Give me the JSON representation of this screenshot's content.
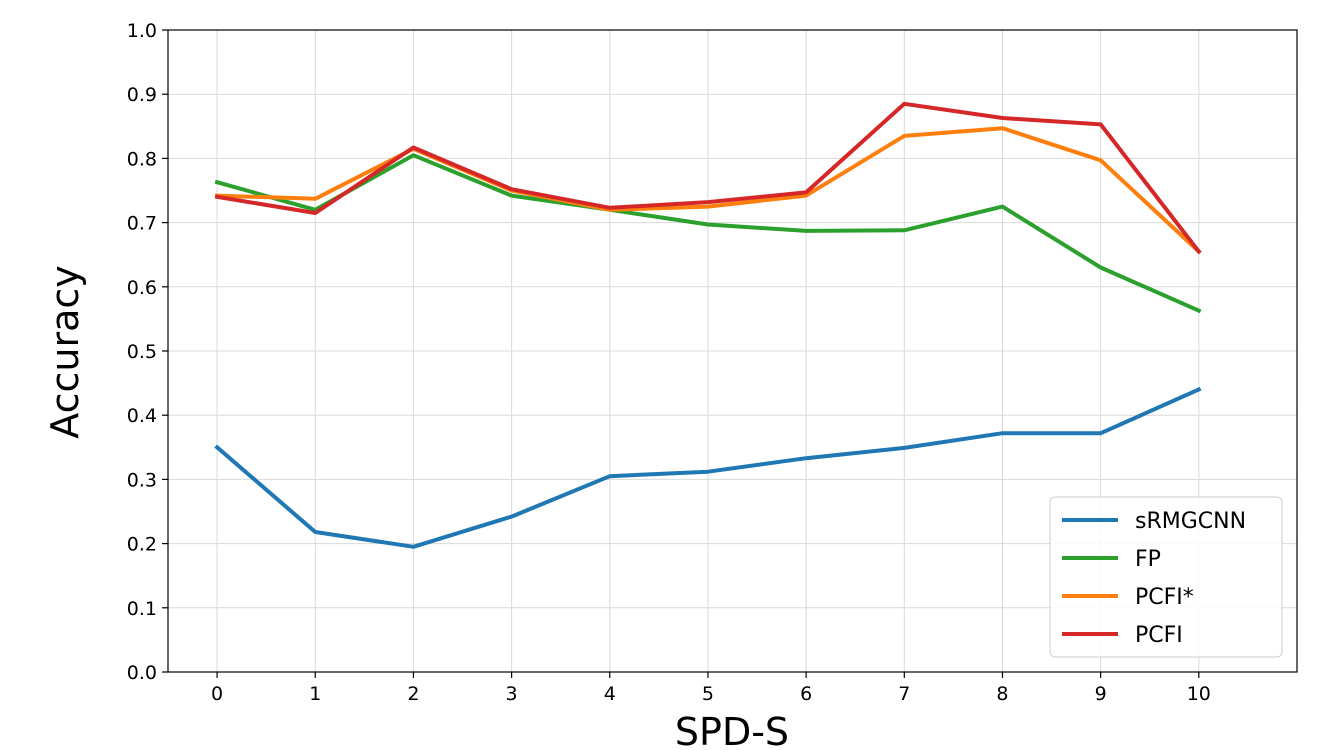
{
  "chart_data": {
    "type": "line",
    "title": "",
    "xlabel": "SPD-S",
    "ylabel": "Accuracy",
    "x": [
      0,
      1,
      2,
      3,
      4,
      5,
      6,
      7,
      8,
      9,
      10
    ],
    "xlim": [
      -0.5,
      11.0
    ],
    "ylim": [
      0.0,
      1.0
    ],
    "yticks": [
      "0.0",
      "0.1",
      "0.2",
      "0.3",
      "0.4",
      "0.5",
      "0.6",
      "0.7",
      "0.8",
      "0.9",
      "1.0"
    ],
    "xticks": [
      "0",
      "1",
      "2",
      "3",
      "4",
      "5",
      "6",
      "7",
      "8",
      "9",
      "10"
    ],
    "grid": true,
    "legend_position": "bottom-right",
    "series": [
      {
        "name": "sRMGCNN",
        "color": "#1f77b4",
        "values": [
          0.35,
          0.218,
          0.195,
          0.242,
          0.305,
          0.312,
          0.333,
          0.349,
          0.372,
          0.372,
          0.44
        ]
      },
      {
        "name": "FP",
        "color": "#2ca02c",
        "values": [
          0.763,
          0.72,
          0.805,
          0.742,
          0.72,
          0.697,
          0.687,
          0.688,
          0.725,
          0.63,
          0.563
        ]
      },
      {
        "name": "PCFI*",
        "color": "#ff7f0e",
        "values": [
          0.742,
          0.737,
          0.815,
          0.75,
          0.72,
          0.725,
          0.742,
          0.835,
          0.847,
          0.797,
          0.655
        ]
      },
      {
        "name": "PCFI",
        "color": "#d62728",
        "values": [
          0.74,
          0.715,
          0.817,
          0.752,
          0.723,
          0.732,
          0.747,
          0.885,
          0.863,
          0.853,
          0.655
        ]
      }
    ]
  }
}
